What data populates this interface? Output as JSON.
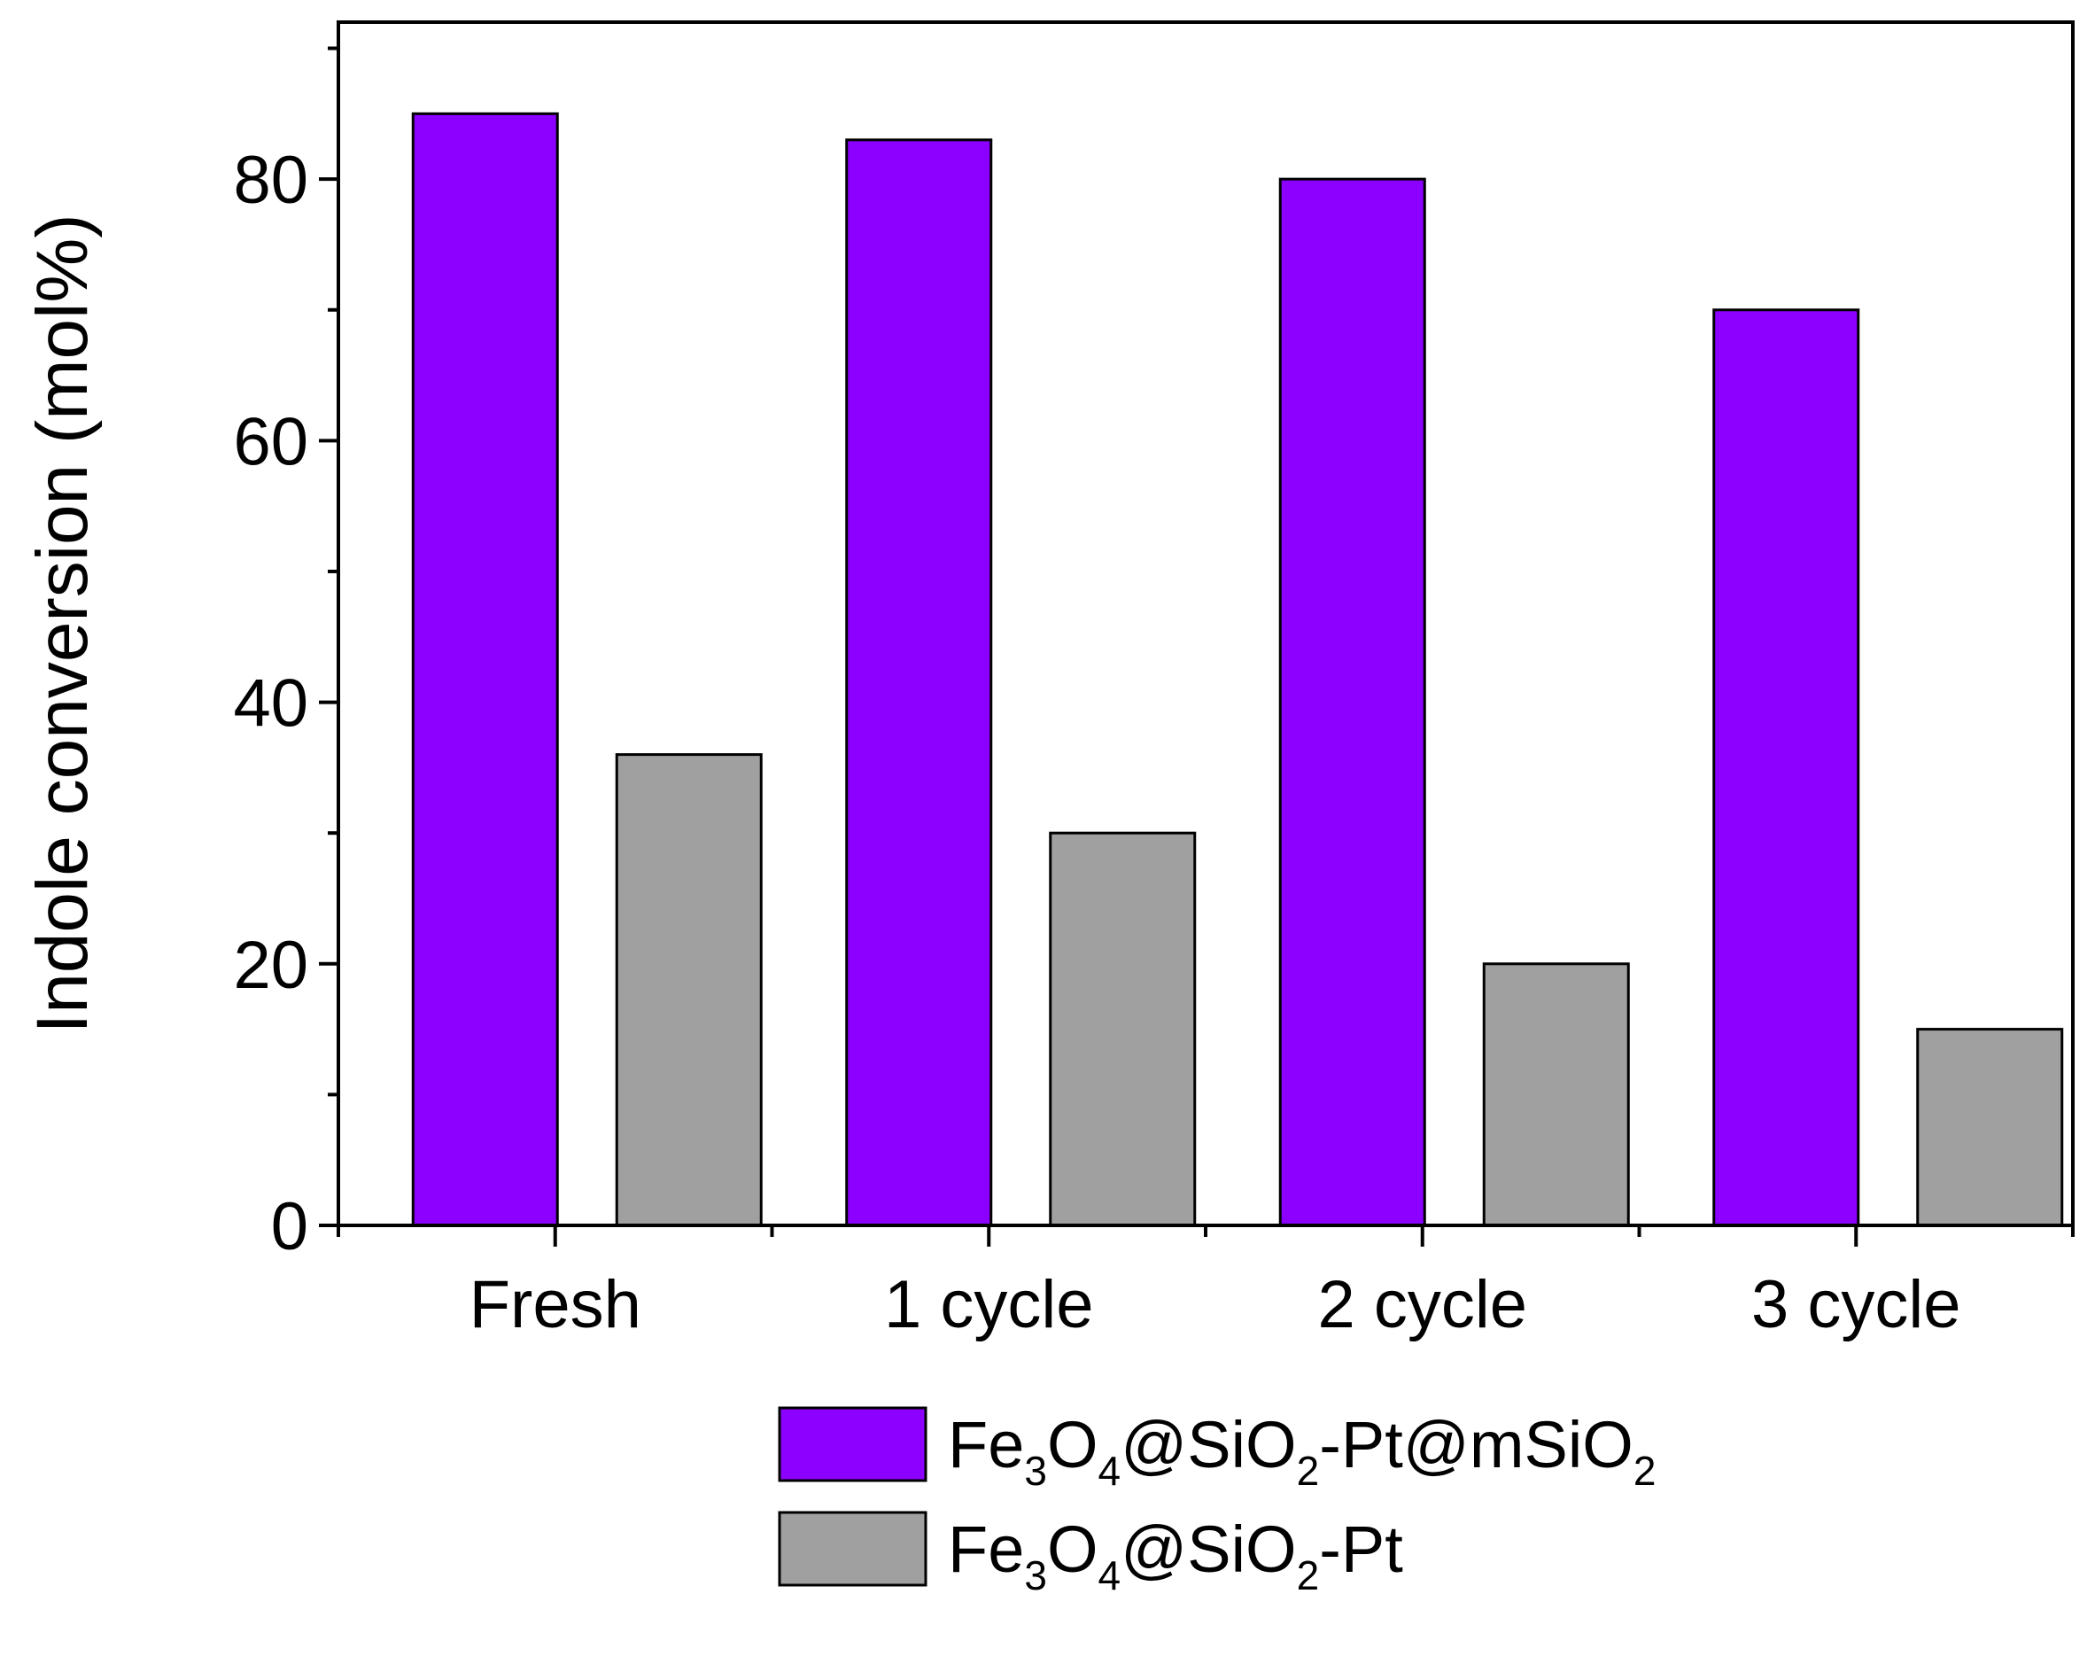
{
  "chart_data": {
    "type": "bar",
    "title": "",
    "xlabel": "",
    "ylabel": "Indole conversion (mol%)",
    "ylim": [
      0,
      92
    ],
    "yticks": [
      0,
      20,
      40,
      60,
      80
    ],
    "categories": [
      "Fresh",
      "1 cycle",
      "2 cycle",
      "3 cycle"
    ],
    "series": [
      {
        "name": "Fe3O4@SiO2-Pt@mSiO2",
        "legend_parts": [
          {
            "text": "Fe",
            "sub": false
          },
          {
            "text": "3",
            "sub": true
          },
          {
            "text": "O",
            "sub": false
          },
          {
            "text": "4",
            "sub": true
          },
          {
            "text": "@SiO",
            "sub": false
          },
          {
            "text": "2",
            "sub": true
          },
          {
            "text": "-Pt@mSiO",
            "sub": false
          },
          {
            "text": "2",
            "sub": true
          }
        ],
        "color": "#8c00ff",
        "values": [
          85,
          83,
          80,
          70
        ]
      },
      {
        "name": "Fe3O4@SiO2-Pt",
        "legend_parts": [
          {
            "text": "Fe",
            "sub": false
          },
          {
            "text": "3",
            "sub": true
          },
          {
            "text": "O",
            "sub": false
          },
          {
            "text": "4",
            "sub": true
          },
          {
            "text": "@SiO",
            "sub": false
          },
          {
            "text": "2",
            "sub": true
          },
          {
            "text": "-Pt",
            "sub": false
          }
        ],
        "color": "#a0a0a0",
        "values": [
          36,
          30,
          20,
          15
        ]
      }
    ],
    "legend_position": "bottom-center",
    "grid": false
  }
}
